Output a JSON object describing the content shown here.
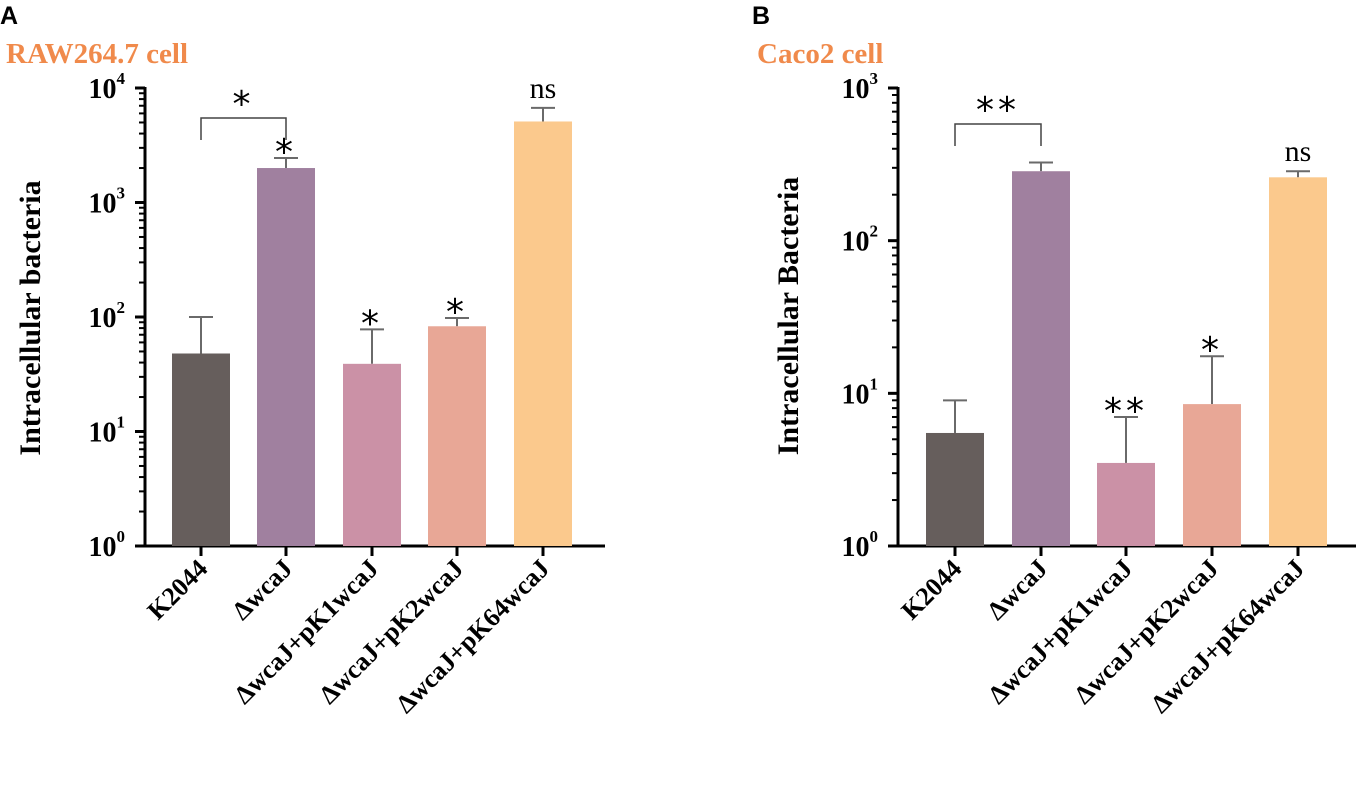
{
  "chart_data": [
    {
      "type": "bar",
      "panel_label": "A",
      "title": "RAW264.7 cell",
      "ylabel": "Intracellular bacteria",
      "xlabel": "",
      "yscale": "log",
      "ylim": [
        1,
        10000
      ],
      "yticks": [
        1,
        10,
        100,
        1000,
        10000
      ],
      "ytick_labels": [
        {
          "base": "10",
          "exp": "0"
        },
        {
          "base": "10",
          "exp": "1"
        },
        {
          "base": "10",
          "exp": "2"
        },
        {
          "base": "10",
          "exp": "3"
        },
        {
          "base": "10",
          "exp": "4"
        }
      ],
      "categories": [
        "K2044",
        "ΔwcaJ",
        "ΔwcaJ+pK1wcaJ",
        "ΔwcaJ+pK2wcaJ",
        "ΔwcaJ+pK64wcaJ"
      ],
      "values": [
        48,
        2000,
        39,
        83,
        5100
      ],
      "error_upper": [
        100,
        2450,
        78,
        98,
        6700
      ],
      "colors": [
        "#665e5c",
        "#a0809f",
        "#cb91a6",
        "#e8a796",
        "#fbc98d"
      ],
      "annotations": [
        "",
        "*",
        "*",
        "*",
        "ns"
      ],
      "bracket": {
        "from": 0,
        "to": 1,
        "label": "*"
      }
    },
    {
      "type": "bar",
      "panel_label": "B",
      "title": "Caco2 cell",
      "ylabel": "Intracellular Bacteria",
      "xlabel": "",
      "yscale": "log",
      "ylim": [
        1,
        1000
      ],
      "yticks": [
        1,
        10,
        100,
        1000
      ],
      "ytick_labels": [
        {
          "base": "10",
          "exp": "0"
        },
        {
          "base": "10",
          "exp": "1"
        },
        {
          "base": "10",
          "exp": "2"
        },
        {
          "base": "10",
          "exp": "3"
        }
      ],
      "categories": [
        "K2044",
        "ΔwcaJ",
        "ΔwcaJ+pK1wcaJ",
        "ΔwcaJ+pK2wcaJ",
        "ΔwcaJ+pK64wcaJ"
      ],
      "values": [
        5.5,
        285,
        3.5,
        8.5,
        260
      ],
      "error_upper": [
        9,
        325,
        7,
        17.5,
        285
      ],
      "colors": [
        "#665e5c",
        "#a0809f",
        "#cb91a6",
        "#e8a796",
        "#fbc98d"
      ],
      "annotations": [
        "",
        "",
        "**",
        "*",
        "ns"
      ],
      "bracket": {
        "from": 0,
        "to": 1,
        "label": "**"
      }
    }
  ],
  "title_color": "#f08a4b"
}
